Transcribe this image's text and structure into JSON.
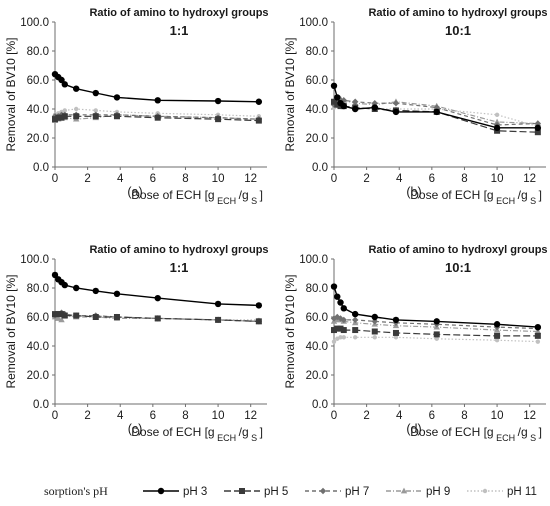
{
  "legend": {
    "title": "sorption's pH",
    "entries": [
      {
        "name": "pH 3",
        "color": "#000000",
        "dash": "solid",
        "marker": "circle"
      },
      {
        "name": "pH 5",
        "color": "#3a3a3a",
        "dash": "longdash",
        "marker": "square"
      },
      {
        "name": "pH 7",
        "color": "#707070",
        "dash": "dash",
        "marker": "diamond"
      },
      {
        "name": "pH 9",
        "color": "#9a9a9a",
        "dash": "dashdot",
        "marker": "triangle"
      },
      {
        "name": "pH 11",
        "color": "#c0c0c0",
        "dash": "dot",
        "marker": "circle-small"
      }
    ]
  },
  "chart_data": [
    {
      "type": "line",
      "panel": "(a)",
      "title": "Ratio of amino to hydroxyl groups",
      "subtitle": "1:1",
      "xlabel": "Dose of ECH [g ECH /g S]",
      "ylabel": "Removal of BV10  [%]",
      "ylim": [
        0,
        100
      ],
      "yticks": [
        "0.0",
        "20.0",
        "40.0",
        "60.0",
        "80.0",
        "100.0"
      ],
      "xlim": [
        0,
        13
      ],
      "xticks": [
        "0",
        "2",
        "4",
        "6",
        "8",
        "10",
        "12"
      ],
      "grid": false,
      "series": [
        {
          "name": "pH 3",
          "x": [
            0,
            0.2,
            0.4,
            0.6,
            1.3,
            2.5,
            3.8,
            6.3,
            10,
            12.5
          ],
          "y": [
            64,
            62,
            60,
            57,
            54,
            51,
            48,
            46,
            45.5,
            45
          ]
        },
        {
          "name": "pH 5",
          "x": [
            0,
            0.2,
            0.4,
            0.6,
            1.3,
            2.5,
            3.8,
            6.3,
            10,
            12.5
          ],
          "y": [
            33,
            34,
            34,
            35,
            35,
            35,
            35,
            34,
            33,
            32
          ]
        },
        {
          "name": "pH 7",
          "x": [
            0,
            0.2,
            0.4,
            0.6,
            1.3,
            2.5,
            3.8,
            6.3,
            10,
            12.5
          ],
          "y": [
            35,
            35,
            36,
            36,
            36,
            36,
            36,
            35,
            34,
            33
          ]
        },
        {
          "name": "pH 9",
          "x": [
            0,
            0.2,
            0.4,
            0.6,
            1.3,
            2.5,
            3.8,
            6.3,
            10,
            12.5
          ],
          "y": [
            32,
            33,
            35,
            34,
            33,
            34,
            36,
            35,
            34,
            33
          ]
        },
        {
          "name": "pH 11",
          "x": [
            0,
            0.2,
            0.4,
            0.6,
            1.3,
            2.5,
            3.8,
            6.3,
            10,
            12.5
          ],
          "y": [
            36,
            37,
            38,
            39,
            40,
            39,
            38,
            37,
            36,
            35
          ]
        }
      ]
    },
    {
      "type": "line",
      "panel": "(b)",
      "title": "Ratio of amino to hydroxyl groups",
      "subtitle": "10:1",
      "xlabel": "Dose of ECH [g ECH /g S]",
      "ylabel": "Removal of BV10  [%]",
      "ylim": [
        0,
        100
      ],
      "yticks": [
        "0.0",
        "20.0",
        "40.0",
        "60.0",
        "80.0",
        "100.0"
      ],
      "xlim": [
        0,
        13
      ],
      "xticks": [
        "0",
        "2",
        "4",
        "6",
        "8",
        "10",
        "12"
      ],
      "grid": false,
      "series": [
        {
          "name": "pH 3",
          "x": [
            0,
            0.2,
            0.4,
            0.6,
            1.3,
            2.5,
            3.8,
            6.3,
            10,
            12.5
          ],
          "y": [
            56,
            48,
            44,
            42,
            40,
            41,
            38,
            38,
            27,
            27
          ]
        },
        {
          "name": "pH 5",
          "x": [
            0,
            0.2,
            0.4,
            0.6,
            1.3,
            2.5,
            3.8,
            6.3,
            10,
            12.5
          ],
          "y": [
            45,
            43,
            42,
            42,
            41,
            40,
            39,
            38,
            25,
            24
          ]
        },
        {
          "name": "pH 7",
          "x": [
            0,
            0.2,
            0.4,
            0.6,
            1.3,
            2.5,
            3.8,
            6.3,
            10,
            12.5
          ],
          "y": [
            43,
            45,
            46,
            46,
            45,
            44,
            44,
            41,
            29,
            30
          ]
        },
        {
          "name": "pH 9",
          "x": [
            0,
            0.2,
            0.4,
            0.6,
            1.3,
            2.5,
            3.8,
            6.3,
            10,
            12.5
          ],
          "y": [
            44,
            46,
            47,
            46,
            44,
            43,
            45,
            42,
            31,
            30
          ]
        },
        {
          "name": "pH 11",
          "x": [
            0,
            0.2,
            0.4,
            0.6,
            1.3,
            2.5,
            3.8,
            6.3,
            10,
            12.5
          ],
          "y": [
            41,
            42,
            42,
            42,
            41,
            40,
            40,
            40,
            36,
            28
          ]
        }
      ]
    },
    {
      "type": "line",
      "panel": "(c)",
      "title": "Ratio of amino to hydroxyl groups",
      "subtitle": "1:1",
      "xlabel": "Dose of ECH [g ECH /g S]",
      "ylabel": "Removal of BV10  [%]",
      "ylim": [
        0,
        100
      ],
      "yticks": [
        "0.0",
        "20.0",
        "40.0",
        "60.0",
        "80.0",
        "100.0"
      ],
      "xlim": [
        0,
        13
      ],
      "xticks": [
        "0",
        "2",
        "4",
        "6",
        "8",
        "10",
        "12"
      ],
      "grid": false,
      "series": [
        {
          "name": "pH 3",
          "x": [
            0,
            0.2,
            0.4,
            0.6,
            1.3,
            2.5,
            3.8,
            6.3,
            10,
            12.5
          ],
          "y": [
            89,
            86,
            84,
            82,
            80,
            78,
            76,
            73,
            69,
            68
          ]
        },
        {
          "name": "pH 5",
          "x": [
            0,
            0.2,
            0.4,
            0.6,
            1.3,
            2.5,
            3.8,
            6.3,
            10,
            12.5
          ],
          "y": [
            62,
            62,
            62,
            61,
            61,
            60,
            60,
            59,
            58,
            57
          ]
        },
        {
          "name": "pH 7",
          "x": [
            0,
            0.2,
            0.4,
            0.6,
            1.3,
            2.5,
            3.8,
            6.3,
            10,
            12.5
          ],
          "y": [
            61,
            62,
            63,
            62,
            61,
            61,
            60,
            59,
            58,
            57
          ]
        },
        {
          "name": "pH 9",
          "x": [
            0,
            0.2,
            0.4,
            0.6,
            1.3,
            2.5,
            3.8,
            6.3,
            10,
            12.5
          ],
          "y": [
            60,
            59,
            58,
            61,
            60,
            60,
            59,
            59,
            58,
            57
          ]
        },
        {
          "name": "pH 11",
          "x": [
            0,
            0.2,
            0.4,
            0.6,
            1.3,
            2.5,
            3.8,
            6.3,
            10,
            12.5
          ],
          "y": [
            61,
            61,
            62,
            62,
            61,
            61,
            60,
            59,
            58,
            58
          ]
        }
      ]
    },
    {
      "type": "line",
      "panel": "(d)",
      "title": "Ratio of amino to hydroxyl groups",
      "subtitle": "10:1",
      "xlabel": "Dose of ECH [g ECH /g S]",
      "ylabel": "Removal of BV10  [%]",
      "ylim": [
        0,
        100
      ],
      "yticks": [
        "0.0",
        "20.0",
        "40.0",
        "60.0",
        "80.0",
        "100.0"
      ],
      "xlim": [
        0,
        13
      ],
      "xticks": [
        "0",
        "2",
        "4",
        "6",
        "8",
        "10",
        "12"
      ],
      "grid": false,
      "series": [
        {
          "name": "pH 3",
          "x": [
            0,
            0.2,
            0.4,
            0.6,
            1.3,
            2.5,
            3.8,
            6.3,
            10,
            12.5
          ],
          "y": [
            81,
            74,
            70,
            66,
            62,
            60,
            58,
            57,
            55,
            53
          ]
        },
        {
          "name": "pH 5",
          "x": [
            0,
            0.2,
            0.4,
            0.6,
            1.3,
            2.5,
            3.8,
            6.3,
            10,
            12.5
          ],
          "y": [
            51,
            52,
            52,
            51,
            51,
            50,
            49,
            48,
            47,
            47
          ]
        },
        {
          "name": "pH 7",
          "x": [
            0,
            0.2,
            0.4,
            0.6,
            1.3,
            2.5,
            3.8,
            6.3,
            10,
            12.5
          ],
          "y": [
            59,
            60,
            59,
            58,
            58,
            57,
            56,
            55,
            53,
            52
          ]
        },
        {
          "name": "pH 9",
          "x": [
            0,
            0.2,
            0.4,
            0.6,
            1.3,
            2.5,
            3.8,
            6.3,
            10,
            12.5
          ],
          "y": [
            57,
            58,
            58,
            57,
            56,
            55,
            54,
            53,
            51,
            50
          ]
        },
        {
          "name": "pH 11",
          "x": [
            0,
            0.2,
            0.4,
            0.6,
            1.3,
            2.5,
            3.8,
            6.3,
            10,
            12.5
          ],
          "y": [
            43,
            45,
            46,
            46,
            46,
            46,
            46,
            45,
            44,
            43
          ]
        }
      ]
    }
  ]
}
